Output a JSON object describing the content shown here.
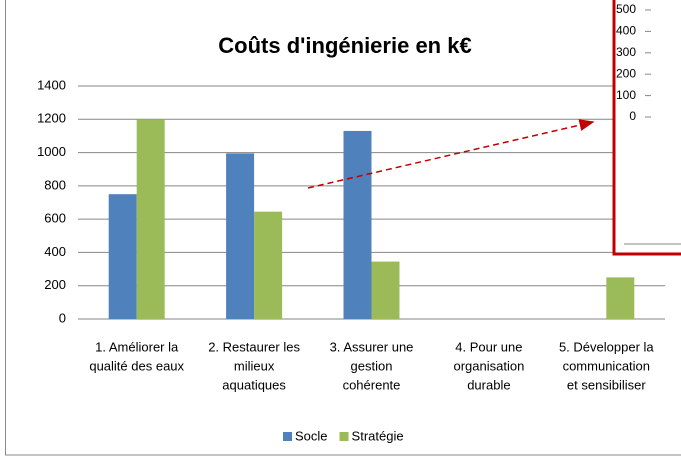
{
  "chart_data": [
    {
      "type": "bar",
      "title": "Coûts d'ingénierie en k€",
      "categories": [
        [
          "1. Améliorer la",
          "qualité des eaux"
        ],
        [
          "2. Restaurer les",
          "milieux",
          "aquatiques"
        ],
        [
          "3. Assurer une",
          "gestion",
          "cohérente"
        ],
        [
          "4. Pour une",
          "organisation",
          "durable"
        ],
        [
          "5. Développer la",
          "communication",
          "et sensibiliser"
        ]
      ],
      "series": [
        {
          "name": "Socle",
          "color": "#4f81bd",
          "values": [
            750,
            995,
            1130,
            0,
            0
          ]
        },
        {
          "name": "Stratégie",
          "color": "#9bbb59",
          "values": [
            1200,
            645,
            345,
            0,
            250
          ]
        }
      ],
      "ylim": [
        0,
        1400
      ],
      "yticks": [
        0,
        200,
        400,
        600,
        800,
        1000,
        1200,
        1400
      ],
      "grid": true,
      "legend": "bottom"
    },
    {
      "type": "bar",
      "ylim": [
        0,
        500
      ],
      "yticks": [
        0,
        100,
        200,
        300,
        400,
        500
      ],
      "grid": false
    }
  ]
}
